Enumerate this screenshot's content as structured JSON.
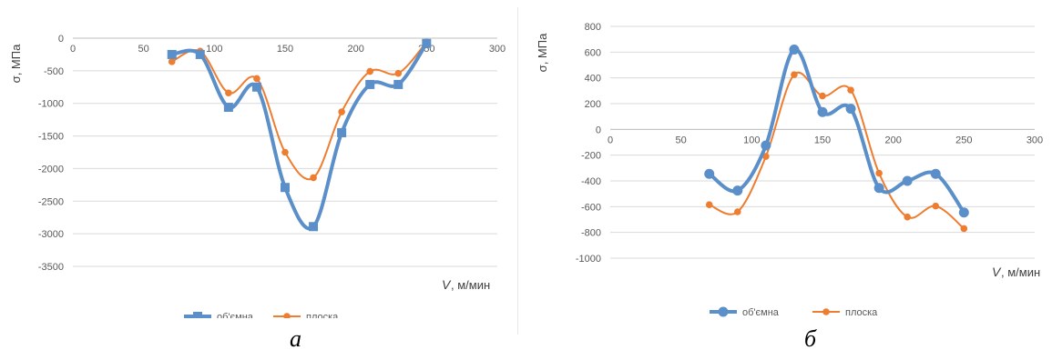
{
  "chart_data": [
    {
      "type": "line",
      "panel_label": "а",
      "xlabel_var": "V",
      "xlabel_unit": ", м/мин",
      "ylabel": "σ, МПа",
      "xlim": [
        0,
        300
      ],
      "ylim": [
        -3500,
        0
      ],
      "xticks": [
        0,
        50,
        100,
        150,
        200,
        250,
        300
      ],
      "yticks": [
        0,
        -500,
        -1000,
        -1500,
        -2000,
        -2500,
        -3000,
        -3500
      ],
      "grid": true,
      "legend_position": "bottom",
      "series": [
        {
          "name": "об'ємна",
          "color": "#5b8fc9",
          "marker": "square",
          "x": [
            70,
            90,
            110,
            130,
            150,
            170,
            190,
            210,
            230,
            250
          ],
          "y": [
            -250,
            -250,
            -1060,
            -750,
            -2290,
            -2890,
            -1450,
            -710,
            -710,
            -80
          ]
        },
        {
          "name": "плоска",
          "color": "#ed7d31",
          "marker": "circle",
          "x": [
            70,
            90,
            110,
            130,
            150,
            170,
            190,
            210,
            230,
            250
          ],
          "y": [
            -360,
            -200,
            -840,
            -620,
            -1750,
            -2140,
            -1130,
            -510,
            -540,
            -60
          ]
        }
      ]
    },
    {
      "type": "line",
      "panel_label": "б",
      "xlabel_var": "V",
      "xlabel_unit": ", м/мин",
      "ylabel": "σ, МПа",
      "xlim": [
        0,
        300
      ],
      "ylim": [
        -1000,
        800
      ],
      "xticks": [
        0,
        50,
        100,
        150,
        200,
        250,
        300
      ],
      "yticks": [
        800,
        600,
        400,
        200,
        0,
        -200,
        -400,
        -600,
        -800,
        -1000
      ],
      "grid": true,
      "legend_position": "bottom",
      "series": [
        {
          "name": "об'ємна",
          "color": "#5b8fc9",
          "marker": "circle",
          "x": [
            70,
            90,
            110,
            130,
            150,
            170,
            190,
            210,
            230,
            250
          ],
          "y": [
            -345,
            -475,
            -125,
            620,
            135,
            160,
            -455,
            -400,
            -345,
            -645
          ]
        },
        {
          "name": "плоска",
          "color": "#ed7d31",
          "marker": "circle",
          "x": [
            70,
            90,
            110,
            130,
            150,
            170,
            190,
            210,
            230,
            250
          ],
          "y": [
            -585,
            -640,
            -210,
            425,
            260,
            305,
            -340,
            -680,
            -595,
            -770
          ]
        }
      ]
    }
  ]
}
